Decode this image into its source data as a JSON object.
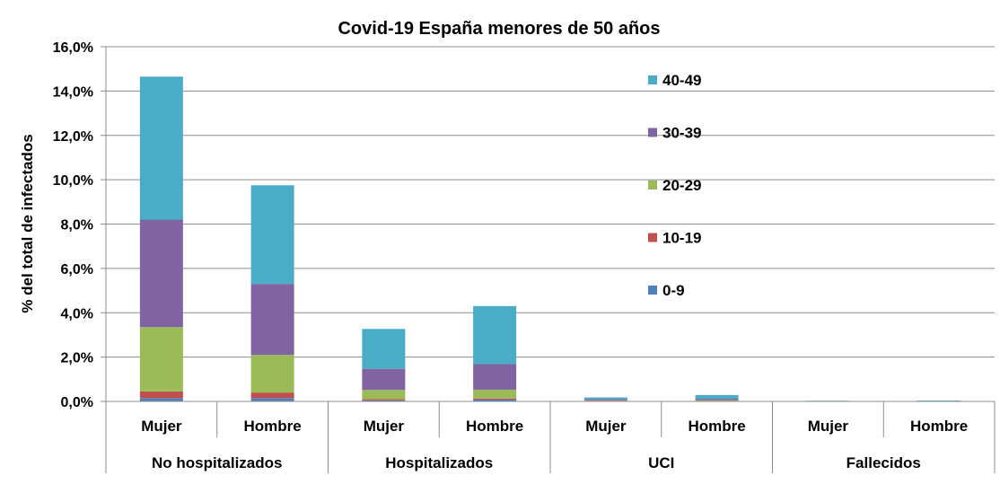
{
  "chart_data": {
    "type": "bar",
    "stacked": true,
    "title": "Covid-19 España menores de 50 años",
    "ylabel": "% del total de infectados",
    "xlabel": "",
    "ylim": [
      0,
      16
    ],
    "yticks": [
      "0,0%",
      "2,0%",
      "4,0%",
      "6,0%",
      "8,0%",
      "10,0%",
      "12,0%",
      "14,0%",
      "16,0%"
    ],
    "grid": true,
    "legend_position": "right, inside plot",
    "groups": [
      "No hospitalizados",
      "Hospitalizados",
      "UCI",
      "Fallecidos"
    ],
    "categories": [
      "Mujer",
      "Hombre",
      "Mujer",
      "Hombre",
      "Mujer",
      "Hombre",
      "Mujer",
      "Hombre"
    ],
    "series": [
      {
        "name": "0-9",
        "color": "#4F81BD",
        "values": [
          0.15,
          0.15,
          0.05,
          0.08,
          0.02,
          0.02,
          0.0,
          0.0
        ]
      },
      {
        "name": "10-19",
        "color": "#C0504D",
        "values": [
          0.3,
          0.25,
          0.05,
          0.05,
          0.01,
          0.01,
          0.0,
          0.0
        ]
      },
      {
        "name": "20-29",
        "color": "#9BBB59",
        "values": [
          2.9,
          1.7,
          0.42,
          0.4,
          0.02,
          0.03,
          0.0,
          0.0
        ]
      },
      {
        "name": "30-39",
        "color": "#8064A2",
        "values": [
          4.85,
          3.2,
          0.95,
          1.15,
          0.05,
          0.06,
          0.01,
          0.01
        ]
      },
      {
        "name": "40-49",
        "color": "#4BACC6",
        "values": [
          6.45,
          4.45,
          1.8,
          2.62,
          0.08,
          0.17,
          0.02,
          0.03
        ]
      }
    ]
  }
}
